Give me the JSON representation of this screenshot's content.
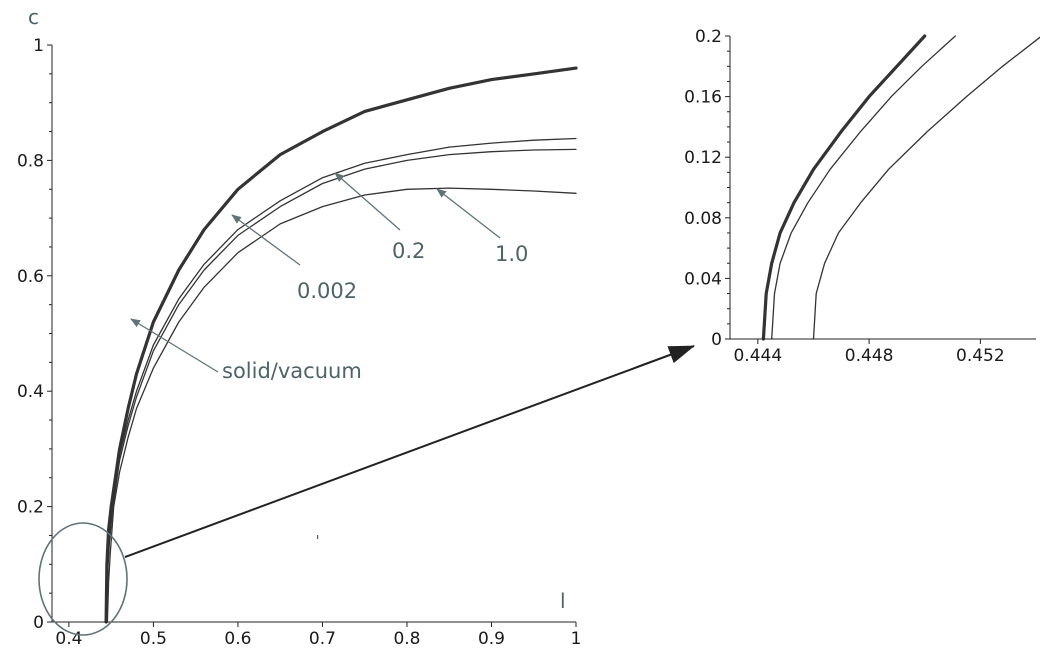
{
  "chart_data": [
    {
      "type": "line",
      "xlabel": "l",
      "ylabel": "c",
      "xlim": [
        0.38,
        1.0
      ],
      "ylim": [
        0,
        1.0
      ],
      "xticks": [
        "0.4",
        "0.5",
        "0.6",
        "0.7",
        "0.8",
        "0.9",
        "1"
      ],
      "yticks": [
        "0",
        "0.2",
        "0.4",
        "0.6",
        "0.8",
        "1"
      ],
      "series": [
        {
          "name": "solid/vacuum",
          "emphasis": "bold",
          "x": [
            0.444,
            0.445,
            0.447,
            0.45,
            0.46,
            0.47,
            0.48,
            0.5,
            0.53,
            0.56,
            0.6,
            0.65,
            0.7,
            0.75,
            0.8,
            0.85,
            0.9,
            0.95,
            1.0
          ],
          "y": [
            0.0,
            0.1,
            0.16,
            0.2,
            0.3,
            0.37,
            0.43,
            0.52,
            0.61,
            0.68,
            0.75,
            0.81,
            0.85,
            0.885,
            0.905,
            0.925,
            0.94,
            0.95,
            0.96
          ]
        },
        {
          "name": "0.002",
          "x": [
            0.4445,
            0.446,
            0.448,
            0.451,
            0.46,
            0.47,
            0.48,
            0.5,
            0.53,
            0.56,
            0.6,
            0.65,
            0.7,
            0.75,
            0.8,
            0.85,
            0.9,
            0.95,
            1.0
          ],
          "y": [
            0.0,
            0.1,
            0.15,
            0.2,
            0.29,
            0.35,
            0.4,
            0.48,
            0.56,
            0.62,
            0.68,
            0.73,
            0.77,
            0.795,
            0.81,
            0.823,
            0.83,
            0.835,
            0.838
          ]
        },
        {
          "name": "0.2",
          "x": [
            0.4445,
            0.446,
            0.448,
            0.452,
            0.46,
            0.47,
            0.48,
            0.5,
            0.53,
            0.56,
            0.6,
            0.65,
            0.7,
            0.75,
            0.8,
            0.85,
            0.9,
            0.95,
            1.0
          ],
          "y": [
            0.0,
            0.09,
            0.14,
            0.2,
            0.28,
            0.34,
            0.39,
            0.47,
            0.55,
            0.61,
            0.67,
            0.72,
            0.76,
            0.785,
            0.8,
            0.81,
            0.815,
            0.818,
            0.819
          ]
        },
        {
          "name": "1.0",
          "x": [
            0.4455,
            0.447,
            0.449,
            0.453,
            0.46,
            0.47,
            0.48,
            0.5,
            0.53,
            0.56,
            0.6,
            0.65,
            0.7,
            0.75,
            0.8,
            0.85,
            0.9,
            0.95,
            1.0
          ],
          "y": [
            0.0,
            0.07,
            0.12,
            0.2,
            0.26,
            0.32,
            0.37,
            0.44,
            0.52,
            0.58,
            0.64,
            0.69,
            0.72,
            0.74,
            0.75,
            0.752,
            0.75,
            0.747,
            0.743
          ]
        }
      ],
      "annotations": [
        {
          "text": "solid/vacuum",
          "target": "solid/vacuum"
        },
        {
          "text": "0.002",
          "target": "0.002"
        },
        {
          "text": "0.2",
          "target": "0.2"
        },
        {
          "text": "1.0",
          "target": "1.0"
        }
      ]
    },
    {
      "type": "line",
      "xlim": [
        0.443,
        0.454
      ],
      "ylim": [
        0,
        0.2
      ],
      "xticks": [
        "0.444",
        "0.448",
        "0.452"
      ],
      "yticks": [
        "0",
        "0.04",
        "0.08",
        "0.12",
        "0.16",
        "0.2"
      ],
      "series": [
        {
          "emphasis": "bold",
          "x": [
            0.4442,
            0.4443,
            0.4445,
            0.4448,
            0.4453,
            0.446,
            0.447,
            0.448,
            0.449,
            0.45
          ],
          "y": [
            0.0,
            0.03,
            0.05,
            0.07,
            0.09,
            0.112,
            0.137,
            0.16,
            0.18,
            0.2
          ]
        },
        {
          "x": [
            0.4445,
            0.4446,
            0.4448,
            0.4452,
            0.4458,
            0.4466,
            0.4477,
            0.4488,
            0.4499,
            0.4511
          ],
          "y": [
            0.0,
            0.03,
            0.05,
            0.07,
            0.09,
            0.112,
            0.137,
            0.16,
            0.18,
            0.2
          ]
        },
        {
          "x": [
            0.446,
            0.4461,
            0.4464,
            0.4469,
            0.4477,
            0.4487,
            0.4501,
            0.4515,
            0.4528,
            0.4542
          ],
          "y": [
            0.0,
            0.03,
            0.05,
            0.07,
            0.09,
            0.112,
            0.137,
            0.16,
            0.18,
            0.2
          ]
        }
      ]
    }
  ],
  "colors": {
    "curve": "#333333",
    "annotation": "#4c6468",
    "axis": "#222222",
    "highlight": "#5d7478"
  }
}
